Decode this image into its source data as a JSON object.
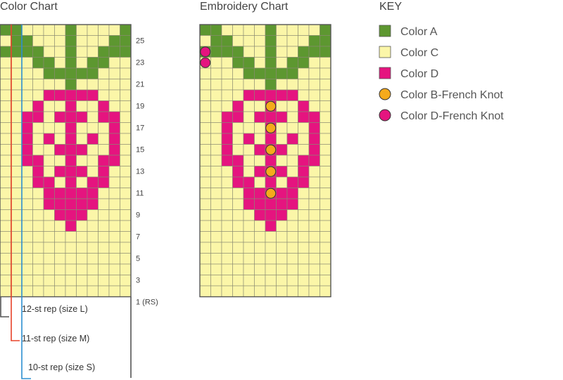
{
  "titles": {
    "color_chart": "Color Chart",
    "embroidery_chart": "Embroidery Chart",
    "key": "KEY"
  },
  "colors": {
    "A": "#5d9730",
    "C": "#fbf6a8",
    "D": "#e5147f",
    "B": "#f5aa1c",
    "grid_line": "#8a8a72",
    "border": "#555555",
    "rep_L": "#555555",
    "rep_M": "#e8432a",
    "rep_S": "#2c8fd1"
  },
  "row_labels": [
    "25",
    "23",
    "21",
    "19",
    "17",
    "15",
    "13",
    "11",
    "9",
    "7",
    "5",
    "3",
    "1 (RS)"
  ],
  "repeat_labels": {
    "L": "12-st rep (size L)",
    "M": "11-st rep (size M)",
    "S": "10-st rep (size S)"
  },
  "key": [
    {
      "label": "Color A",
      "symbol": "square",
      "color": "A"
    },
    {
      "label": "Color C",
      "symbol": "square",
      "color": "C"
    },
    {
      "label": "Color D",
      "symbol": "square",
      "color": "D"
    },
    {
      "label": "Color B-French Knot",
      "symbol": "circle",
      "color": "B"
    },
    {
      "label": "Color D-French Knot",
      "symbol": "circle",
      "color": "D"
    }
  ],
  "color_chart_grid": [
    "AACCCCACCCCA",
    "CAACCCACCCAA",
    "AAAACCACCAAA",
    "CCCAACACAACC",
    "CCCCAAAAACCC",
    "CCCCCCACCCCC",
    "CCCCDDDDDCCC",
    "CCCDCCDCCDCC",
    "CCDDCDDDCDDC",
    "CCDCCCDCCCDC",
    "CCDCDCDCDCDC",
    "CCDCCDDDCCDC",
    "CCDDCCDCCDDC",
    "CCCDCDDDCDCC",
    "CCCDDCDCDDCC",
    "CCCCDDDDDCCC",
    "CCCCDDDDDCCC",
    "CCCCCDDDCCCC",
    "CCCCCCDCCCCC",
    "CCCCCCCCCCCC",
    "CCCCCCCCCCCC",
    "CCCCCCCCCCCC",
    "CCCCCCCCCCCC",
    "CCCCCCCCCCCC",
    "CCCCCCCCCCCC"
  ],
  "embroidery_knots": [
    {
      "row": 2,
      "col": 0,
      "color": "D"
    },
    {
      "row": 3,
      "col": 0,
      "color": "D"
    },
    {
      "row": 7,
      "col": 6,
      "color": "B"
    },
    {
      "row": 9,
      "col": 6,
      "color": "B"
    },
    {
      "row": 11,
      "col": 6,
      "color": "B"
    },
    {
      "row": 13,
      "col": 6,
      "color": "B"
    },
    {
      "row": 15,
      "col": 6,
      "color": "B"
    }
  ]
}
